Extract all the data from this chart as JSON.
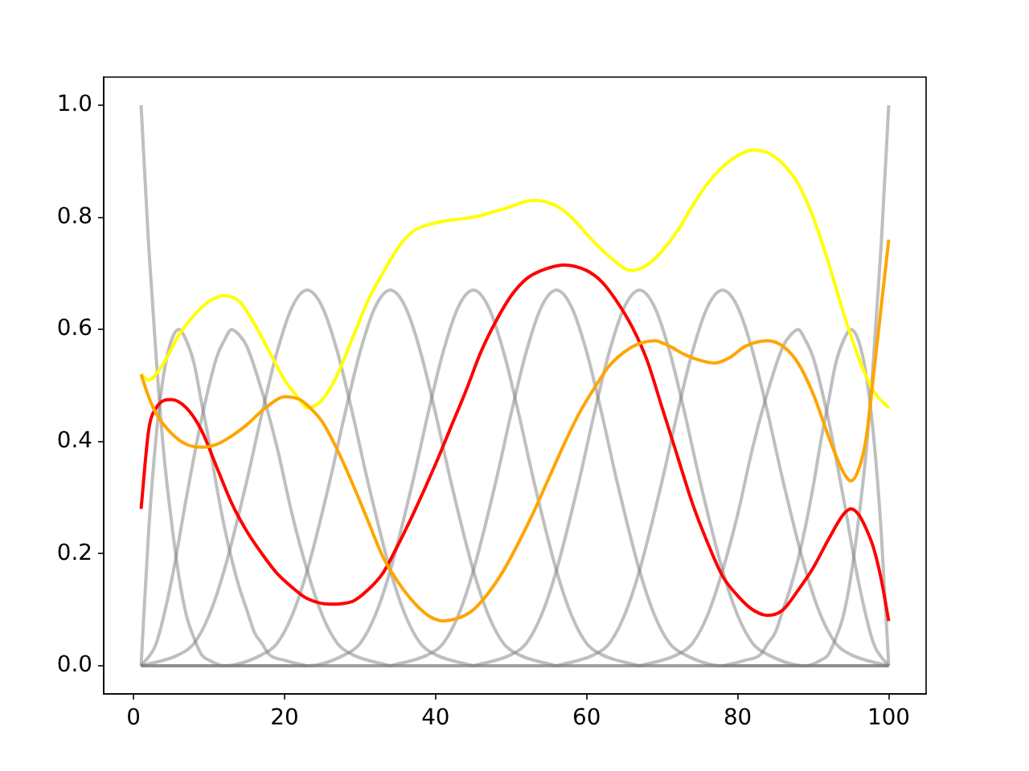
{
  "chart_data": {
    "type": "line",
    "xlim": [
      -3.95,
      104.95
    ],
    "ylim": [
      -0.05,
      1.05
    ],
    "xticks": [
      0,
      20,
      40,
      60,
      80,
      100
    ],
    "yticks": [
      {
        "value": 0,
        "label": "0.0"
      },
      {
        "value": 0.2,
        "label": "0.2"
      },
      {
        "value": 0.4,
        "label": "0.4"
      },
      {
        "value": 0.6,
        "label": "0.6"
      },
      {
        "value": 0.8,
        "label": "0.8"
      },
      {
        "value": 1,
        "label": "1.0"
      }
    ],
    "series": [
      {
        "color": "#bfbfbf",
        "x": [
          1,
          2,
          3,
          4,
          5,
          6,
          7,
          8,
          9,
          10,
          12,
          100
        ],
        "values": [
          1,
          0.75,
          0.55,
          0.38,
          0.26,
          0.16,
          0.09,
          0.05,
          0.02,
          0.01,
          0,
          0
        ]
      },
      {
        "color": "#bfbfbf",
        "x": [
          1,
          2,
          3,
          4,
          5,
          6,
          7,
          8,
          9,
          10,
          11,
          12,
          13,
          14,
          15,
          16,
          17,
          18,
          20,
          23
        ],
        "values": [
          0,
          0.24,
          0.41,
          0.52,
          0.58,
          0.6,
          0.58,
          0.54,
          0.47,
          0.4,
          0.32,
          0.25,
          0.19,
          0.14,
          0.1,
          0.06,
          0.04,
          0.02,
          0.01,
          0
        ]
      },
      {
        "color": "#bfbfbf",
        "x": [
          1,
          3,
          5,
          7,
          9,
          11,
          12,
          13,
          14,
          15,
          17,
          19,
          21,
          23,
          25,
          27,
          29,
          34
        ],
        "values": [
          0,
          0.04,
          0.15,
          0.3,
          0.44,
          0.55,
          0.58,
          0.6,
          0.59,
          0.57,
          0.49,
          0.39,
          0.27,
          0.17,
          0.09,
          0.04,
          0.02,
          0
        ]
      },
      {
        "color": "#bfbfbf",
        "x": [
          1,
          6,
          8,
          10,
          12,
          15,
          17,
          19,
          21,
          23,
          25,
          27,
          29,
          31,
          34,
          36,
          38,
          40,
          45
        ],
        "values": [
          0,
          0.02,
          0.04,
          0.09,
          0.17,
          0.33,
          0.45,
          0.56,
          0.64,
          0.67,
          0.64,
          0.56,
          0.45,
          0.33,
          0.17,
          0.09,
          0.04,
          0.02,
          0
        ]
      },
      {
        "color": "#bfbfbf",
        "x": [
          1,
          12,
          17,
          19,
          21,
          23,
          26,
          28,
          30,
          32,
          34,
          36,
          38,
          40,
          42,
          45,
          47,
          49,
          51,
          56
        ],
        "values": [
          0,
          0,
          0.02,
          0.04,
          0.09,
          0.17,
          0.33,
          0.45,
          0.56,
          0.64,
          0.67,
          0.64,
          0.56,
          0.45,
          0.33,
          0.17,
          0.09,
          0.04,
          0.02,
          0
        ]
      },
      {
        "color": "#bfbfbf",
        "x": [
          1,
          23,
          28,
          30,
          32,
          34,
          37,
          39,
          41,
          43,
          45,
          47,
          49,
          51,
          53,
          56,
          58,
          60,
          62,
          67
        ],
        "values": [
          0,
          0,
          0.02,
          0.04,
          0.09,
          0.17,
          0.33,
          0.45,
          0.56,
          0.64,
          0.67,
          0.64,
          0.56,
          0.45,
          0.33,
          0.17,
          0.09,
          0.04,
          0.02,
          0
        ]
      },
      {
        "color": "#bfbfbf",
        "x": [
          34,
          39,
          41,
          43,
          45,
          48,
          50,
          52,
          54,
          56,
          58,
          60,
          62,
          64,
          67,
          69,
          71,
          73,
          78,
          100
        ],
        "values": [
          0,
          0.02,
          0.04,
          0.09,
          0.17,
          0.33,
          0.45,
          0.56,
          0.64,
          0.67,
          0.64,
          0.56,
          0.45,
          0.33,
          0.17,
          0.09,
          0.04,
          0.02,
          0,
          0
        ]
      },
      {
        "color": "#bfbfbf",
        "x": [
          45,
          50,
          52,
          54,
          56,
          59,
          61,
          63,
          65,
          67,
          69,
          71,
          73,
          75,
          78,
          80,
          82,
          84,
          89,
          100
        ],
        "values": [
          0,
          0.02,
          0.04,
          0.09,
          0.17,
          0.33,
          0.45,
          0.56,
          0.64,
          0.67,
          0.64,
          0.56,
          0.45,
          0.33,
          0.17,
          0.09,
          0.04,
          0.02,
          0,
          0
        ]
      },
      {
        "color": "#bfbfbf",
        "x": [
          56,
          61,
          63,
          65,
          67,
          70,
          72,
          74,
          76,
          78,
          80,
          82,
          84,
          86,
          89,
          91,
          93,
          95,
          100
        ],
        "values": [
          0,
          0.02,
          0.04,
          0.09,
          0.17,
          0.33,
          0.45,
          0.56,
          0.64,
          0.67,
          0.64,
          0.56,
          0.45,
          0.33,
          0.17,
          0.09,
          0.04,
          0.02,
          0
        ]
      },
      {
        "color": "#bfbfbf",
        "x": [
          67,
          72,
          74,
          76,
          78,
          80,
          82,
          84,
          86,
          87,
          88,
          89,
          90,
          92,
          94,
          96,
          98,
          100
        ],
        "values": [
          0,
          0.02,
          0.04,
          0.09,
          0.17,
          0.27,
          0.39,
          0.49,
          0.57,
          0.59,
          0.6,
          0.58,
          0.55,
          0.44,
          0.3,
          0.15,
          0.04,
          0
        ]
      },
      {
        "color": "#bfbfbf",
        "x": [
          78,
          81,
          83,
          84,
          85,
          86,
          87,
          88,
          89,
          90,
          91,
          92,
          93,
          94,
          95,
          96,
          97,
          98,
          99,
          100
        ],
        "values": [
          0,
          0.01,
          0.02,
          0.04,
          0.06,
          0.1,
          0.14,
          0.19,
          0.25,
          0.32,
          0.4,
          0.47,
          0.54,
          0.58,
          0.6,
          0.58,
          0.52,
          0.41,
          0.24,
          0
        ]
      },
      {
        "color": "#bfbfbf",
        "x": [
          1,
          89,
          91,
          92,
          93,
          94,
          95,
          96,
          97,
          98,
          99,
          100
        ],
        "values": [
          0,
          0,
          0.01,
          0.02,
          0.05,
          0.09,
          0.16,
          0.26,
          0.38,
          0.55,
          0.75,
          1
        ]
      },
      {
        "color": "#ffff00",
        "x": [
          1,
          2,
          4,
          6,
          8,
          10,
          12,
          14,
          16,
          18,
          20,
          22,
          23,
          25,
          27,
          29,
          31,
          33,
          35,
          37,
          40,
          42,
          45,
          49,
          53,
          56,
          58,
          60,
          63,
          66,
          68,
          70,
          72,
          74,
          76,
          78,
          80,
          82,
          84,
          86,
          88,
          90,
          92,
          94,
          96,
          98,
          100
        ],
        "values": [
          0.52,
          0.51,
          0.54,
          0.59,
          0.625,
          0.65,
          0.66,
          0.65,
          0.61,
          0.56,
          0.51,
          0.475,
          0.46,
          0.475,
          0.52,
          0.585,
          0.65,
          0.7,
          0.745,
          0.775,
          0.79,
          0.795,
          0.8,
          0.815,
          0.83,
          0.82,
          0.8,
          0.77,
          0.73,
          0.705,
          0.715,
          0.74,
          0.775,
          0.82,
          0.86,
          0.89,
          0.91,
          0.92,
          0.915,
          0.895,
          0.86,
          0.8,
          0.72,
          0.63,
          0.55,
          0.49,
          0.46
        ]
      },
      {
        "color": "#ff0000",
        "x": [
          1,
          2,
          3,
          5,
          7,
          9,
          11,
          13,
          15,
          17,
          19,
          21,
          23,
          26,
          29,
          31,
          33,
          35,
          37,
          40,
          42,
          44,
          46,
          48,
          50,
          52,
          54,
          57,
          60,
          62,
          64,
          66,
          68,
          70,
          72,
          74,
          76,
          78,
          80,
          82,
          84,
          86,
          88,
          90,
          92,
          94,
          95,
          96,
          97,
          98,
          99,
          100
        ],
        "values": [
          0.28,
          0.42,
          0.46,
          0.475,
          0.46,
          0.42,
          0.355,
          0.29,
          0.24,
          0.2,
          0.165,
          0.14,
          0.12,
          0.11,
          0.115,
          0.135,
          0.165,
          0.215,
          0.27,
          0.36,
          0.425,
          0.49,
          0.56,
          0.615,
          0.66,
          0.69,
          0.705,
          0.715,
          0.705,
          0.685,
          0.65,
          0.605,
          0.545,
          0.46,
          0.375,
          0.29,
          0.22,
          0.16,
          0.125,
          0.1,
          0.09,
          0.1,
          0.135,
          0.175,
          0.225,
          0.27,
          0.28,
          0.27,
          0.245,
          0.21,
          0.155,
          0.08
        ]
      },
      {
        "color": "#ffa500",
        "x": [
          1,
          2,
          3,
          5,
          7,
          9,
          11,
          13,
          15,
          17,
          19,
          20,
          22,
          23,
          25,
          27,
          29,
          31,
          33,
          35,
          37,
          39,
          41,
          43,
          45,
          47,
          49,
          51,
          53,
          55,
          57,
          59,
          61,
          63,
          65,
          67,
          69,
          71,
          73,
          75,
          77,
          79,
          81,
          84,
          86,
          88,
          90,
          92,
          93,
          94,
          95,
          96,
          97,
          98,
          99,
          100
        ],
        "values": [
          0.52,
          0.48,
          0.45,
          0.415,
          0.395,
          0.39,
          0.395,
          0.41,
          0.43,
          0.455,
          0.475,
          0.48,
          0.475,
          0.465,
          0.435,
          0.385,
          0.325,
          0.26,
          0.195,
          0.15,
          0.115,
          0.09,
          0.08,
          0.085,
          0.1,
          0.13,
          0.17,
          0.22,
          0.275,
          0.335,
          0.395,
          0.45,
          0.495,
          0.535,
          0.56,
          0.575,
          0.58,
          0.57,
          0.555,
          0.545,
          0.54,
          0.55,
          0.57,
          0.58,
          0.57,
          0.54,
          0.485,
          0.41,
          0.375,
          0.345,
          0.33,
          0.35,
          0.405,
          0.52,
          0.64,
          0.76
        ]
      }
    ]
  }
}
